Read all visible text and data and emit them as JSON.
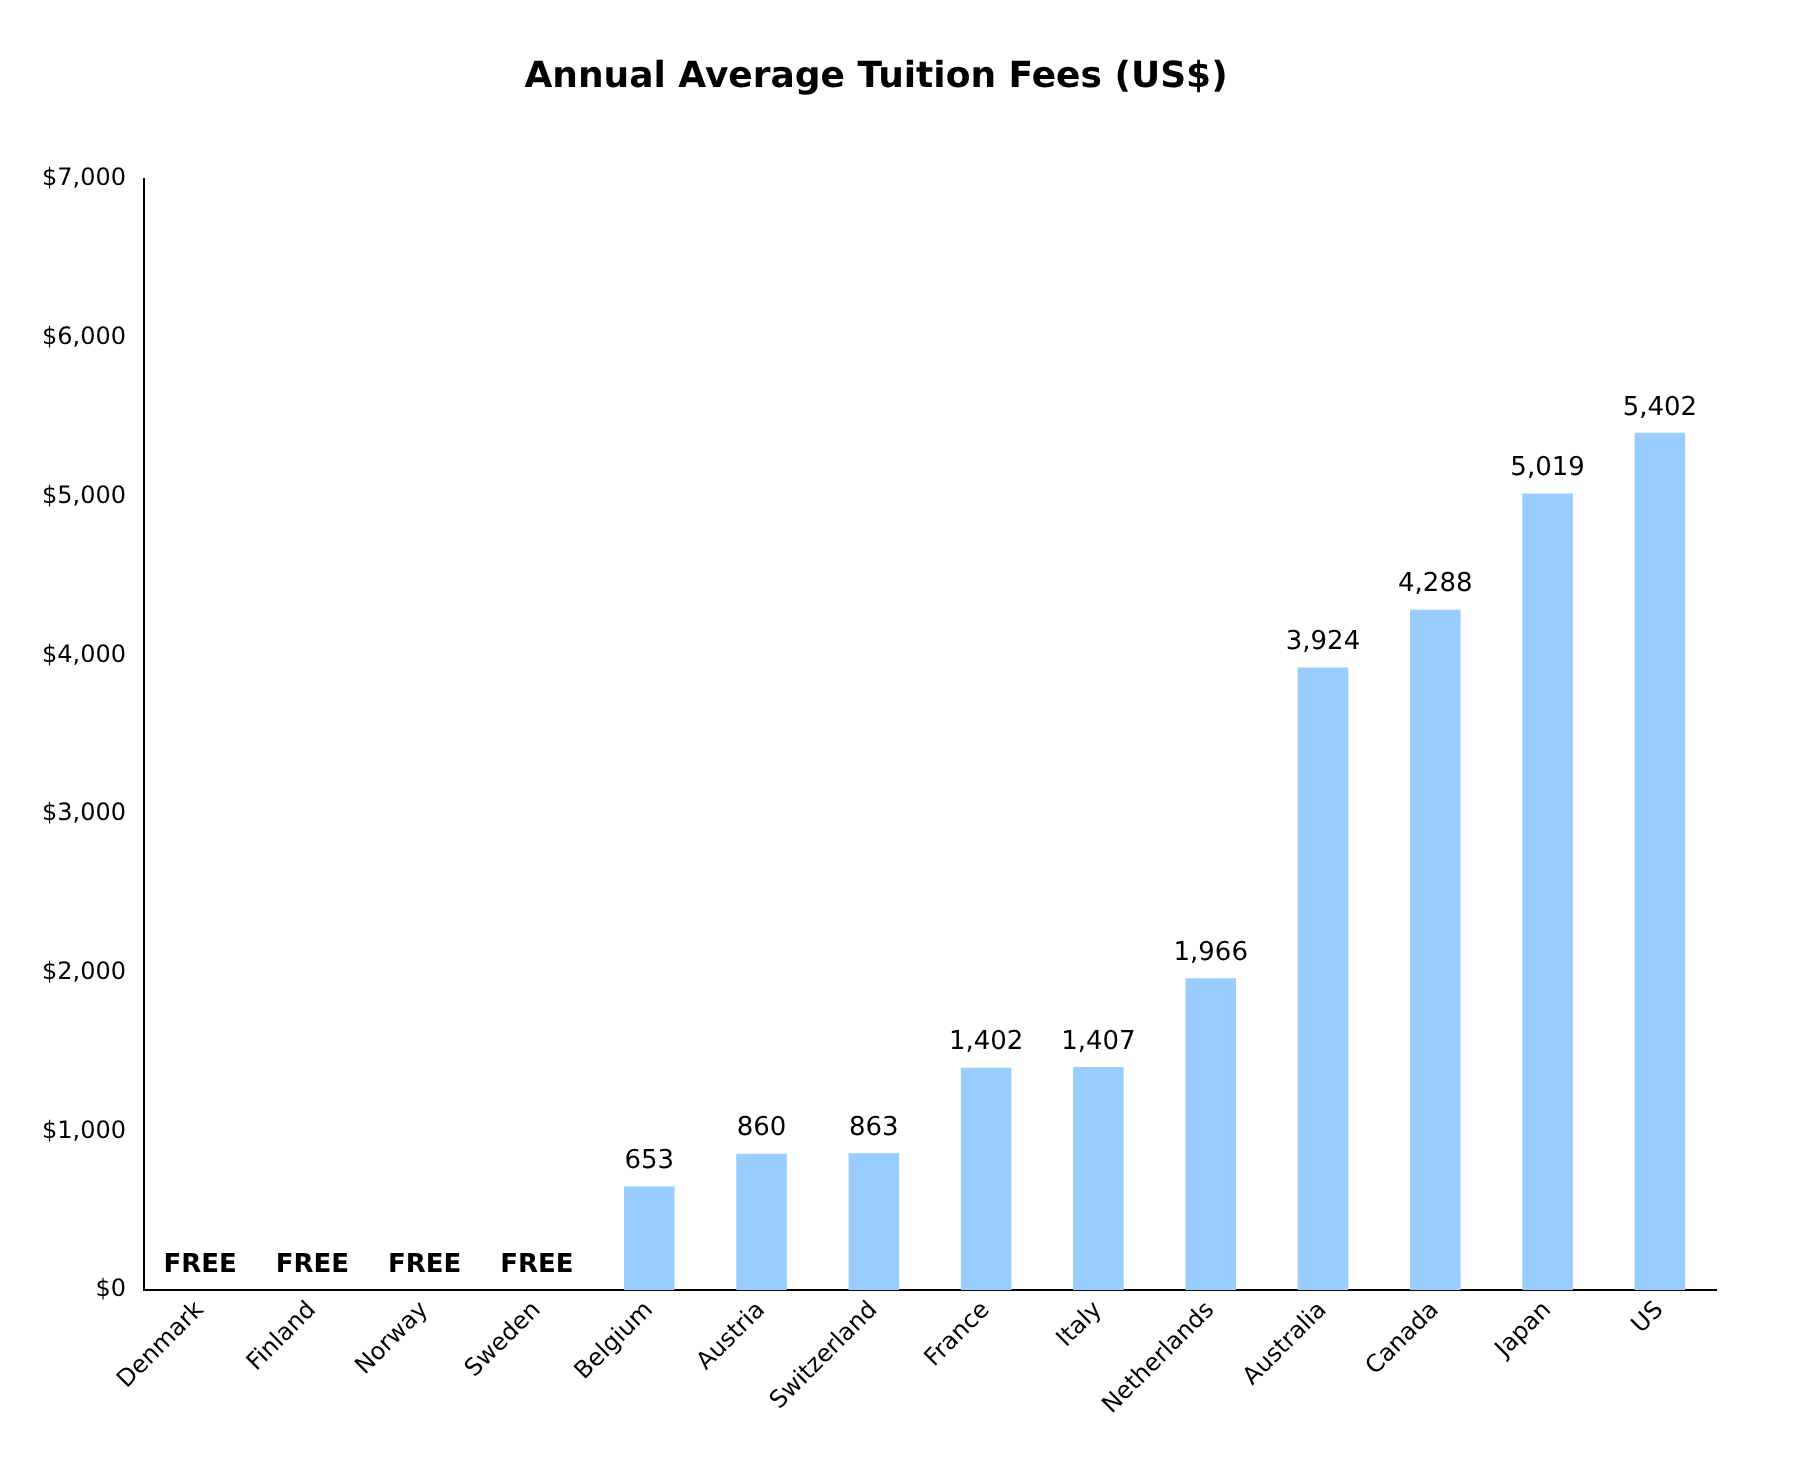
{
  "chart_data": {
    "type": "bar",
    "title": "Annual Average Tuition Fees (US$)",
    "categories": [
      "Denmark",
      "Finland",
      "Norway",
      "Sweden",
      "Belgium",
      "Austria",
      "Switzerland",
      "France",
      "Italy",
      "Netherlands",
      "Australia",
      "Canada",
      "Japan",
      "US"
    ],
    "values": [
      0,
      0,
      0,
      0,
      653,
      860,
      863,
      1402,
      1407,
      1966,
      3924,
      4288,
      5019,
      5402
    ],
    "value_labels": [
      "FREE",
      "FREE",
      "FREE",
      "FREE",
      "653",
      "860",
      "863",
      "1,402",
      "1,407",
      "1,966",
      "3,924",
      "4,288",
      "5,019",
      "5,402"
    ],
    "color": "#99ccff",
    "ylim": [
      0,
      7000
    ],
    "yticks": [
      {
        "value": 0,
        "label": "$0"
      },
      {
        "value": 1000,
        "label": "$1,000"
      },
      {
        "value": 2000,
        "label": "$2,000"
      },
      {
        "value": 3000,
        "label": "$3,000"
      },
      {
        "value": 4000,
        "label": "$4,000"
      },
      {
        "value": 5000,
        "label": "$5,000"
      },
      {
        "value": 6000,
        "label": "$6,000"
      },
      {
        "value": 7000,
        "label": "$7,000"
      }
    ],
    "grid": false,
    "legend": false
  }
}
